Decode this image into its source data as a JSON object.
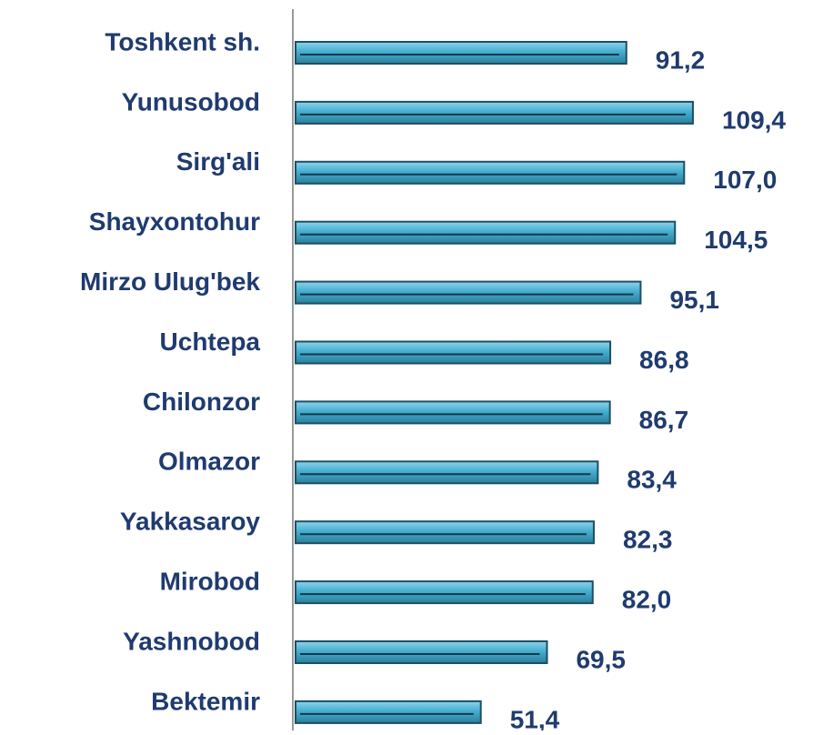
{
  "chart_data": {
    "type": "barh",
    "categories": [
      "Toshkent sh.",
      "Yunusobod",
      "Sirg'ali",
      "Shayxontohur",
      "Mirzo Ulug'bek",
      "Uchtepa",
      "Chilonzor",
      "Olmazor",
      "Yakkasaroy",
      "Mirobod",
      "Yashnobod",
      "Bektemir"
    ],
    "values": [
      91.2,
      109.4,
      107.0,
      104.5,
      95.1,
      86.8,
      86.7,
      83.4,
      82.3,
      82.0,
      69.5,
      51.4
    ],
    "value_labels": [
      "91,2",
      "109,4",
      "107,0",
      "104,5",
      "95,1",
      "86,8",
      "86,7",
      "83,4",
      "82,3",
      "82,0",
      "69,5",
      "51,4"
    ],
    "color": "#45aed0",
    "xlim": [
      0,
      140
    ]
  }
}
